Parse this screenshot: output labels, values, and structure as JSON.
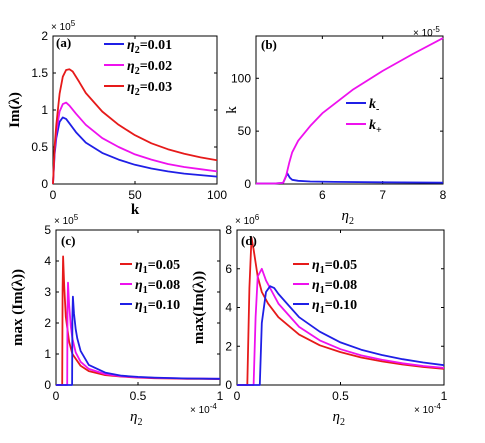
{
  "chart_data": [
    {
      "type": "line",
      "panel_label": "(a)",
      "xlabel": "k",
      "ylabel": "Im(λ)",
      "xlim": [
        0,
        100
      ],
      "ylim": [
        0,
        2
      ],
      "y_exponent_label": "× 10^5",
      "xticks": [
        0,
        50,
        100
      ],
      "yticks": [
        0,
        0.5,
        1,
        1.5,
        2
      ],
      "legend": "top-right",
      "series": [
        {
          "legend_symbol": "η",
          "legend_sub": "2",
          "legend_value": "=0.01",
          "color": "#1f1fe6",
          "x": [
            0,
            1,
            2,
            4,
            6,
            8,
            10,
            14,
            20,
            30,
            40,
            50,
            60,
            70,
            80,
            90,
            100
          ],
          "y": [
            0,
            0.4,
            0.62,
            0.84,
            0.9,
            0.88,
            0.82,
            0.7,
            0.56,
            0.42,
            0.33,
            0.26,
            0.21,
            0.17,
            0.14,
            0.12,
            0.1
          ]
        },
        {
          "legend_symbol": "η",
          "legend_sub": "2",
          "legend_value": "=0.02",
          "color": "#ee11ee",
          "x": [
            0,
            1,
            2,
            4,
            6,
            8,
            10,
            14,
            20,
            30,
            40,
            50,
            60,
            70,
            80,
            90,
            100
          ],
          "y": [
            0,
            0.45,
            0.7,
            0.98,
            1.08,
            1.1,
            1.06,
            0.95,
            0.8,
            0.62,
            0.5,
            0.4,
            0.33,
            0.27,
            0.23,
            0.2,
            0.17
          ]
        },
        {
          "legend_symbol": "η",
          "legend_sub": "2",
          "legend_value": "=0.03",
          "color": "#e61a1a",
          "x": [
            0,
            1,
            2,
            4,
            6,
            8,
            10,
            12,
            16,
            20,
            30,
            40,
            50,
            60,
            70,
            80,
            90,
            100
          ],
          "y": [
            0,
            0.5,
            0.8,
            1.22,
            1.45,
            1.54,
            1.55,
            1.52,
            1.38,
            1.23,
            0.98,
            0.8,
            0.66,
            0.55,
            0.47,
            0.41,
            0.36,
            0.32
          ]
        }
      ]
    },
    {
      "type": "line",
      "panel_label": "(b)",
      "xlabel_symbol": "η",
      "xlabel_sub": "2",
      "ylabel": "k",
      "xlim": [
        4.9,
        8
      ],
      "ylim": [
        0,
        140
      ],
      "x_exponent_label": "× 10^-5",
      "xticks": [
        6,
        7,
        8
      ],
      "yticks": [
        0,
        50,
        100
      ],
      "legend": "center-right",
      "series": [
        {
          "legend_symbol": "k",
          "legend_sub": "-",
          "color": "#1f1fe6",
          "x": [
            4.9,
            5.2,
            5.35,
            5.42,
            5.46,
            5.5,
            5.6,
            5.8,
            6.2,
            7,
            8
          ],
          "y": [
            0.5,
            0.5,
            1,
            10,
            6,
            4,
            3,
            2.4,
            2,
            1.6,
            1.2
          ]
        },
        {
          "legend_symbol": "k",
          "legend_sub": "+",
          "color": "#ee11ee",
          "x": [
            4.9,
            5.2,
            5.35,
            5.4,
            5.45,
            5.5,
            5.6,
            5.8,
            6,
            6.5,
            7,
            7.5,
            8
          ],
          "y": [
            0.5,
            0.5,
            1,
            8,
            20,
            30,
            41,
            55,
            67,
            89,
            107,
            123,
            138
          ]
        }
      ]
    },
    {
      "type": "line",
      "panel_label": "(c)",
      "xlabel_symbol": "η",
      "xlabel_sub": "2",
      "ylabel": "max (Im(λ))",
      "xlim": [
        0,
        1
      ],
      "ylim": [
        0,
        5
      ],
      "y_exponent_label": "× 10^5",
      "x_exponent_label": "× 10^-4",
      "xticks": [
        0,
        0.5,
        1
      ],
      "yticks": [
        0,
        1,
        2,
        3,
        4,
        5
      ],
      "legend": "top-right",
      "series": [
        {
          "legend_symbol": "η",
          "legend_sub": "1",
          "legend_value": "=0.05",
          "color": "#e61a1a",
          "x": [
            0,
            0.038,
            0.04,
            0.043,
            0.05,
            0.06,
            0.08,
            0.1,
            0.15,
            0.2,
            0.3,
            0.4,
            0.5,
            0.6,
            0.7,
            0.8,
            0.9,
            1
          ],
          "y": [
            0,
            0,
            3.1,
            4.15,
            3.2,
            2.2,
            1.4,
            1.0,
            0.62,
            0.45,
            0.32,
            0.27,
            0.24,
            0.22,
            0.21,
            0.2,
            0.2,
            0.19
          ]
        },
        {
          "legend_symbol": "η",
          "legend_sub": "1",
          "legend_value": "=0.08",
          "color": "#ee11ee",
          "x": [
            0,
            0.068,
            0.07,
            0.073,
            0.08,
            0.09,
            0.1,
            0.12,
            0.15,
            0.2,
            0.3,
            0.4,
            0.5,
            0.6,
            0.8,
            1
          ],
          "y": [
            0,
            0,
            2.5,
            3.3,
            2.6,
            1.9,
            1.5,
            1.05,
            0.75,
            0.52,
            0.35,
            0.28,
            0.25,
            0.23,
            0.21,
            0.2
          ]
        },
        {
          "legend_symbol": "η",
          "legend_sub": "1",
          "legend_value": "=0.10",
          "color": "#1f1fe6",
          "x": [
            0,
            0.098,
            0.1,
            0.103,
            0.11,
            0.12,
            0.13,
            0.15,
            0.2,
            0.3,
            0.4,
            0.5,
            0.6,
            0.8,
            1
          ],
          "y": [
            0,
            0,
            2.2,
            2.85,
            2.3,
            1.8,
            1.5,
            1.1,
            0.65,
            0.4,
            0.3,
            0.26,
            0.24,
            0.21,
            0.2
          ]
        }
      ]
    },
    {
      "type": "line",
      "panel_label": "(d)",
      "xlabel_symbol": "η",
      "xlabel_sub": "2",
      "ylabel": "max(Im(λ))",
      "xlim": [
        0,
        1
      ],
      "ylim": [
        0,
        8
      ],
      "y_exponent_label": "× 10^6",
      "x_exponent_label": "× 10^-4",
      "xticks": [
        0,
        0.5,
        1
      ],
      "yticks": [
        0,
        2,
        4,
        6,
        8
      ],
      "legend": "top-right",
      "series": [
        {
          "legend_symbol": "η",
          "legend_sub": "1",
          "legend_value": "=0.05",
          "color": "#e61a1a",
          "x": [
            0,
            0.05,
            0.06,
            0.07,
            0.08,
            0.1,
            0.12,
            0.15,
            0.2,
            0.3,
            0.4,
            0.5,
            0.6,
            0.7,
            0.8,
            0.9,
            1
          ],
          "y": [
            0,
            0,
            5.0,
            7.6,
            7.0,
            5.6,
            4.8,
            4.2,
            3.5,
            2.6,
            2.05,
            1.7,
            1.42,
            1.22,
            1.06,
            0.93,
            0.83
          ]
        },
        {
          "legend_symbol": "η",
          "legend_sub": "1",
          "legend_value": "=0.08",
          "color": "#ee11ee",
          "x": [
            0,
            0.08,
            0.09,
            0.1,
            0.12,
            0.14,
            0.17,
            0.2,
            0.3,
            0.4,
            0.5,
            0.6,
            0.7,
            0.8,
            0.9,
            1
          ],
          "y": [
            0,
            0,
            3.5,
            5.6,
            6.0,
            5.4,
            4.8,
            4.2,
            3.0,
            2.3,
            1.85,
            1.53,
            1.3,
            1.12,
            0.98,
            0.88
          ]
        },
        {
          "legend_symbol": "η",
          "legend_sub": "1",
          "legend_value": "=0.10",
          "color": "#1f1fe6",
          "x": [
            0,
            0.11,
            0.12,
            0.14,
            0.16,
            0.18,
            0.2,
            0.25,
            0.3,
            0.4,
            0.5,
            0.6,
            0.7,
            0.8,
            0.9,
            1
          ],
          "y": [
            0,
            0,
            3.2,
            4.8,
            5.1,
            5.0,
            4.7,
            4.1,
            3.5,
            2.75,
            2.2,
            1.82,
            1.55,
            1.33,
            1.16,
            1.02
          ]
        }
      ]
    }
  ]
}
